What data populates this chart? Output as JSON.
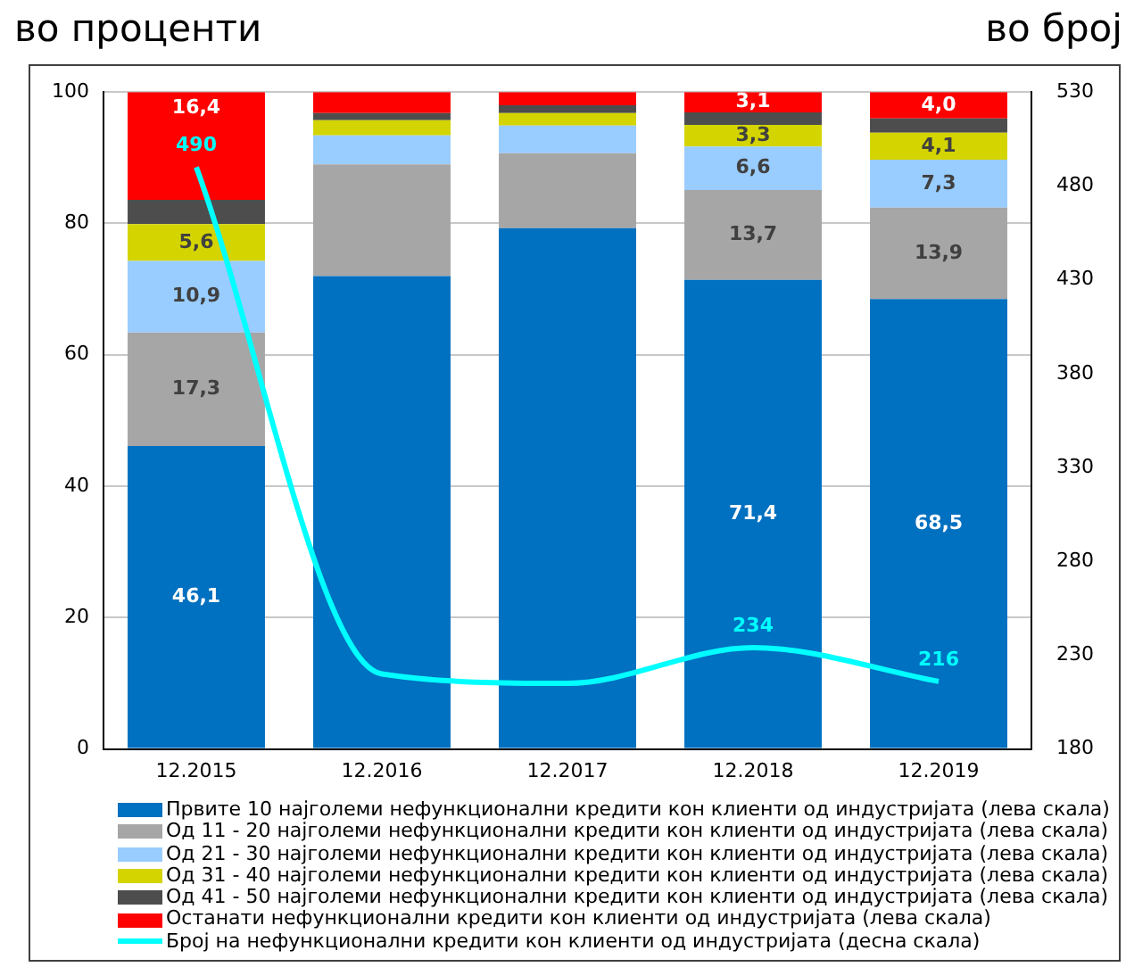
{
  "chart_data": {
    "type": "bar",
    "stacked": true,
    "ylabel": "во проценти",
    "y2label": "во број",
    "categories": [
      "12.2015",
      "12.2016",
      "12.2017",
      "12.2018",
      "12.2019"
    ],
    "ylim": [
      0,
      100
    ],
    "yticks": [
      0,
      20,
      40,
      60,
      80,
      100
    ],
    "y2lim": [
      180,
      530
    ],
    "y2ticks": [
      180,
      230,
      280,
      330,
      380,
      430,
      480,
      530
    ],
    "grid": "y",
    "legend": "bottom",
    "marker": "none",
    "series": [
      {
        "name": "Првите 10 најголеми нефункционални кредити кон клиенти од индустријата (лева скала)",
        "color": "#0070c0",
        "values": [
          46.1,
          72.0,
          79.3,
          71.4,
          68.5
        ],
        "value_labels": [
          "46,1",
          null,
          null,
          "71,4",
          "68,5"
        ]
      },
      {
        "name": "Од 11 - 20 најголеми нефункционални кредити кон клиенти од индустријата (лева скала)",
        "color": "#a6a6a6",
        "values": [
          17.3,
          17.0,
          11.4,
          13.7,
          13.9
        ],
        "value_labels": [
          "17,3",
          null,
          null,
          "13,7",
          "13,9"
        ]
      },
      {
        "name": "Од 21 - 30 најголеми нефункционални кредити кон клиенти од индустријата (лева скала)",
        "color": "#99ccff",
        "values": [
          10.9,
          4.4,
          4.2,
          6.6,
          7.3
        ],
        "value_labels": [
          "10,9",
          null,
          null,
          "6,6",
          "7,3"
        ]
      },
      {
        "name": "Од 31 - 40 најголеми нефункционални кредити кон клиенти од индустријата (лева скала)",
        "color": "#d4d400",
        "values": [
          5.6,
          2.3,
          1.9,
          3.3,
          4.1
        ],
        "value_labels": [
          "5,6",
          null,
          null,
          "3,3",
          "4,1"
        ]
      },
      {
        "name": "Од 41 - 50 најголеми нефункционални кредити кон клиенти од индустријата (лева скала)",
        "color": "#4d4d4d",
        "values": [
          3.7,
          1.1,
          1.2,
          1.9,
          2.2
        ]
      },
      {
        "name": "Останати нефункционални кредити кон клиенти од индустријата (лева скала)",
        "color": "#ff0000",
        "values": [
          16.4,
          3.2,
          2.0,
          3.1,
          4.0
        ],
        "value_labels": [
          "16,4",
          null,
          null,
          "3,1",
          "4,0"
        ]
      },
      {
        "name": "Број на нефункционални кредити кон клиенти од индустријата (десна скала)",
        "type": "line",
        "axis": "y2",
        "color": "#00ffff",
        "values": [
          490,
          220,
          215,
          234,
          216
        ],
        "value_labels": [
          "490",
          null,
          null,
          "234",
          "216"
        ]
      }
    ]
  }
}
